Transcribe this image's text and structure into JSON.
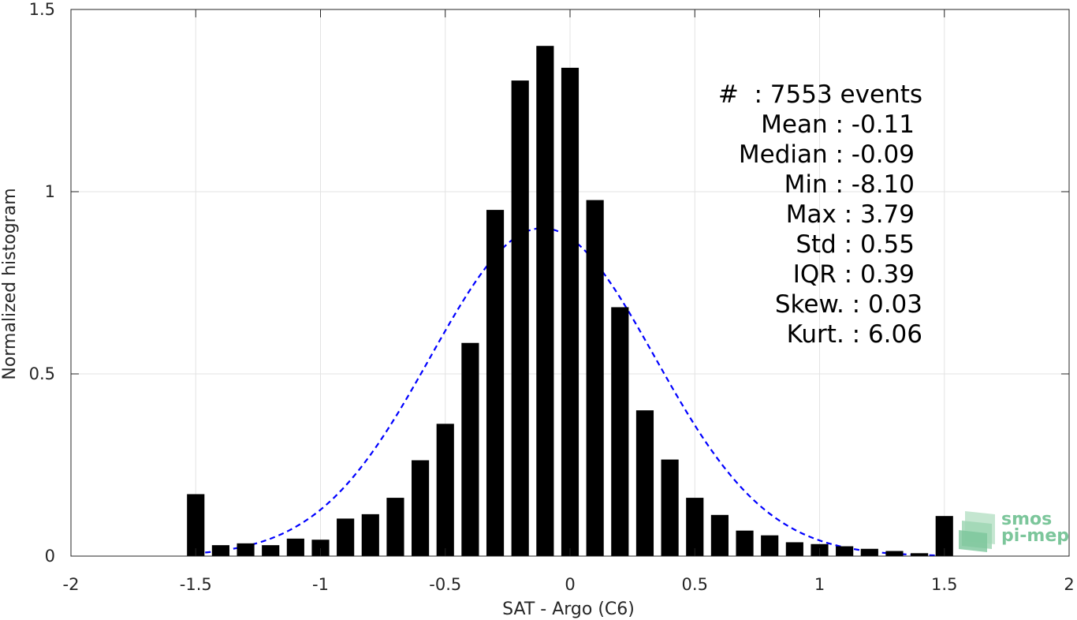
{
  "chart_data": {
    "type": "bar",
    "xlabel": "SAT - Argo (C6)",
    "ylabel": "Normalized histogram",
    "xlim": [
      -2,
      2
    ],
    "ylim": [
      0,
      1.5
    ],
    "xticks": [
      "-2",
      "-1.5",
      "-1",
      "-0.5",
      "0",
      "0.5",
      "1",
      "1.5",
      "2"
    ],
    "yticks": [
      "0",
      "0.5",
      "1",
      "1.5"
    ],
    "grid": true,
    "bar_color": "#000000",
    "bar_width": 0.07,
    "x": [
      -1.5,
      -1.4,
      -1.3,
      -1.2,
      -1.1,
      -1.0,
      -0.9,
      -0.8,
      -0.7,
      -0.6,
      -0.5,
      -0.4,
      -0.3,
      -0.2,
      -0.1,
      0.0,
      0.1,
      0.2,
      0.3,
      0.4,
      0.5,
      0.6,
      0.7,
      0.8,
      0.9,
      1.0,
      1.1,
      1.2,
      1.3,
      1.4,
      1.5
    ],
    "values": [
      0.17,
      0.03,
      0.035,
      0.03,
      0.048,
      0.045,
      0.103,
      0.115,
      0.16,
      0.263,
      0.363,
      0.585,
      0.95,
      1.305,
      1.4,
      1.34,
      0.977,
      0.683,
      0.4,
      0.265,
      0.16,
      0.113,
      0.07,
      0.057,
      0.038,
      0.033,
      0.027,
      0.02,
      0.014,
      0.008,
      0.11
    ],
    "fit": {
      "type": "gaussian",
      "mean": -0.11,
      "std": 0.45,
      "peak": 0.9,
      "x_range": [
        -1.5,
        1.5
      ],
      "color": "#0000ff",
      "style": "dashed"
    },
    "stats": [
      "#  : 7553 events",
      "Mean : -0.11",
      "Median : -0.09",
      "Min : -8.10",
      "Max : 3.79",
      "Std : 0.55",
      "IQR : 0.39",
      "Skew. : 0.03",
      "Kurt. : 6.06"
    ]
  },
  "logo": {
    "line1": "smos",
    "line2": "pi-mep",
    "color": "#7cc69b"
  }
}
